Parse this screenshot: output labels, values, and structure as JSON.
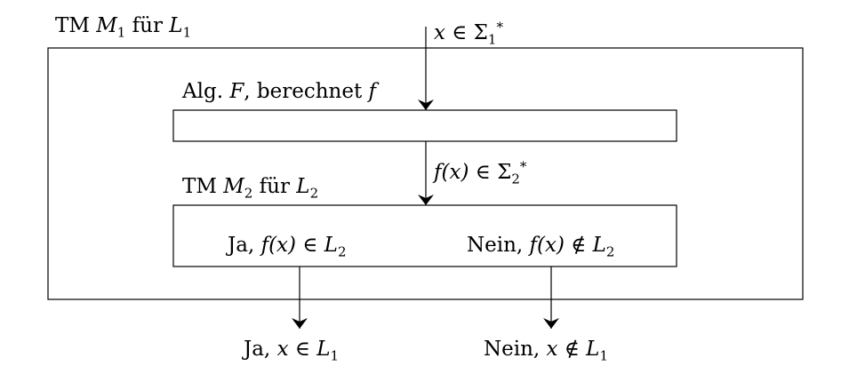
{
  "outer_machine": {
    "text": "TM",
    "machine": "M",
    "machine_index": "1",
    "for": "für",
    "language": "L",
    "language_index": "1"
  },
  "input": {
    "var": "x",
    "op": "∈",
    "sigma": "Σ",
    "sigma_index": "1",
    "star": "*"
  },
  "algorithm": {
    "text": "Alg.",
    "name": "F",
    "rest": ", berechnet",
    "func": "f"
  },
  "transfer": {
    "func": "f",
    "arg": "(x)",
    "op": "∈",
    "sigma": "Σ",
    "sigma_index": "2",
    "star": "*"
  },
  "inner_machine": {
    "text": "TM",
    "machine": "M",
    "machine_index": "2",
    "for": "für",
    "language": "L",
    "language_index": "2"
  },
  "inner_yes": {
    "word": "Ja,",
    "func": "f",
    "arg": "(x)",
    "op": "∈",
    "language": "L",
    "language_index": "2"
  },
  "inner_no": {
    "word": "Nein,",
    "func": "f",
    "arg": "(x)",
    "op": "∉",
    "language": "L",
    "language_index": "2"
  },
  "out_yes": {
    "word": "Ja,",
    "var": "x",
    "op": "∈",
    "language": "L",
    "language_index": "1"
  },
  "out_no": {
    "word": "Nein,",
    "var": "x",
    "op": "∉",
    "language": "L",
    "language_index": "1"
  }
}
